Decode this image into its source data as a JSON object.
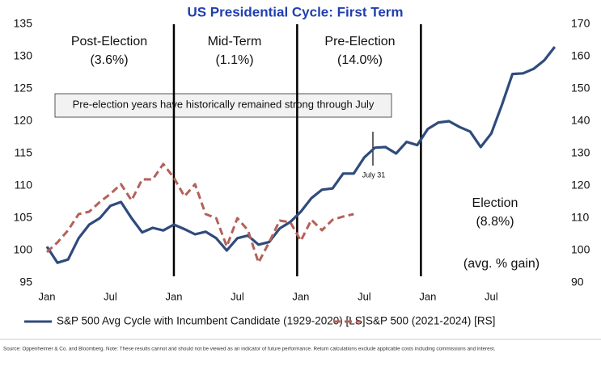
{
  "chart_data": {
    "type": "line",
    "title": "US Presidential Cycle: First Term",
    "categories": [
      "Jan",
      null,
      null,
      null,
      null,
      null,
      "Jul",
      null,
      null,
      null,
      null,
      null,
      "Jan",
      null,
      null,
      null,
      null,
      null,
      "Jul",
      null,
      null,
      null,
      null,
      null,
      "Jan",
      null,
      null,
      null,
      null,
      null,
      "Jul",
      null,
      null,
      null,
      null,
      null,
      "Jan",
      null,
      null,
      null,
      null,
      null,
      "Jul",
      null,
      null,
      null,
      null,
      null,
      null
    ],
    "series": [
      {
        "name": "S&P 500 Avg Cycle with Incumbent Candidate (1929-2020) [LS]",
        "color": "#2f4b7c",
        "axis": "y",
        "values": [
          100.6,
          98.1,
          98.6,
          101.9,
          104,
          105,
          106.9,
          107.5,
          105,
          102.8,
          103.5,
          103.1,
          104,
          103.3,
          102.5,
          102.9,
          101.9,
          100,
          101.9,
          102.3,
          100.9,
          101.3,
          103.4,
          104.4,
          106,
          108.1,
          109.4,
          109.6,
          111.9,
          111.9,
          114.4,
          115.9,
          116,
          115,
          116.8,
          116.3,
          118.8,
          119.8,
          120,
          119.1,
          118.4,
          116,
          118.1,
          122.5,
          127.3,
          127.4,
          128.1,
          129.4,
          131.5
        ]
      },
      {
        "name": "S&P 500 (2021-2024) [RS]",
        "color": "#b5605a",
        "axis": "y2",
        "dashed": true,
        "values": [
          99.5,
          102.5,
          106.25,
          111.25,
          112,
          115,
          117.5,
          120.5,
          115.5,
          122,
          122,
          126.75,
          122.5,
          116.75,
          120.5,
          111.25,
          110,
          101.25,
          110,
          106.25,
          96.25,
          102.5,
          109.25,
          108.75,
          103,
          109.5,
          106.25,
          109.5,
          110.5,
          111.25,
          null,
          null,
          null,
          null,
          null,
          null,
          null,
          null,
          null,
          null,
          null,
          null,
          null,
          null,
          null,
          null,
          null,
          null,
          null
        ]
      }
    ],
    "ylim": [
      95,
      135
    ],
    "yticks": [
      95,
      100,
      105,
      110,
      115,
      120,
      125,
      130,
      135
    ],
    "y2lim": [
      90,
      170
    ],
    "y2ticks": [
      90,
      100,
      110,
      120,
      130,
      140,
      150,
      160,
      170
    ],
    "grid": false,
    "annotations": [
      "Post-Election",
      "(3.6%)",
      "Mid-Term",
      "(1.1%)",
      "Pre-Election",
      "(14.0%)",
      "Election",
      "(8.8%)",
      "(avg. % gain)",
      "Pre-election years have historically remained strong through July",
      "July 31"
    ],
    "source": "Source: Oppenheimer & Co. and Bloomberg. Note: These results cannot and should not be viewed as an indicator of future performance. Return calculations exclude applicable costs including commissions and interest."
  }
}
